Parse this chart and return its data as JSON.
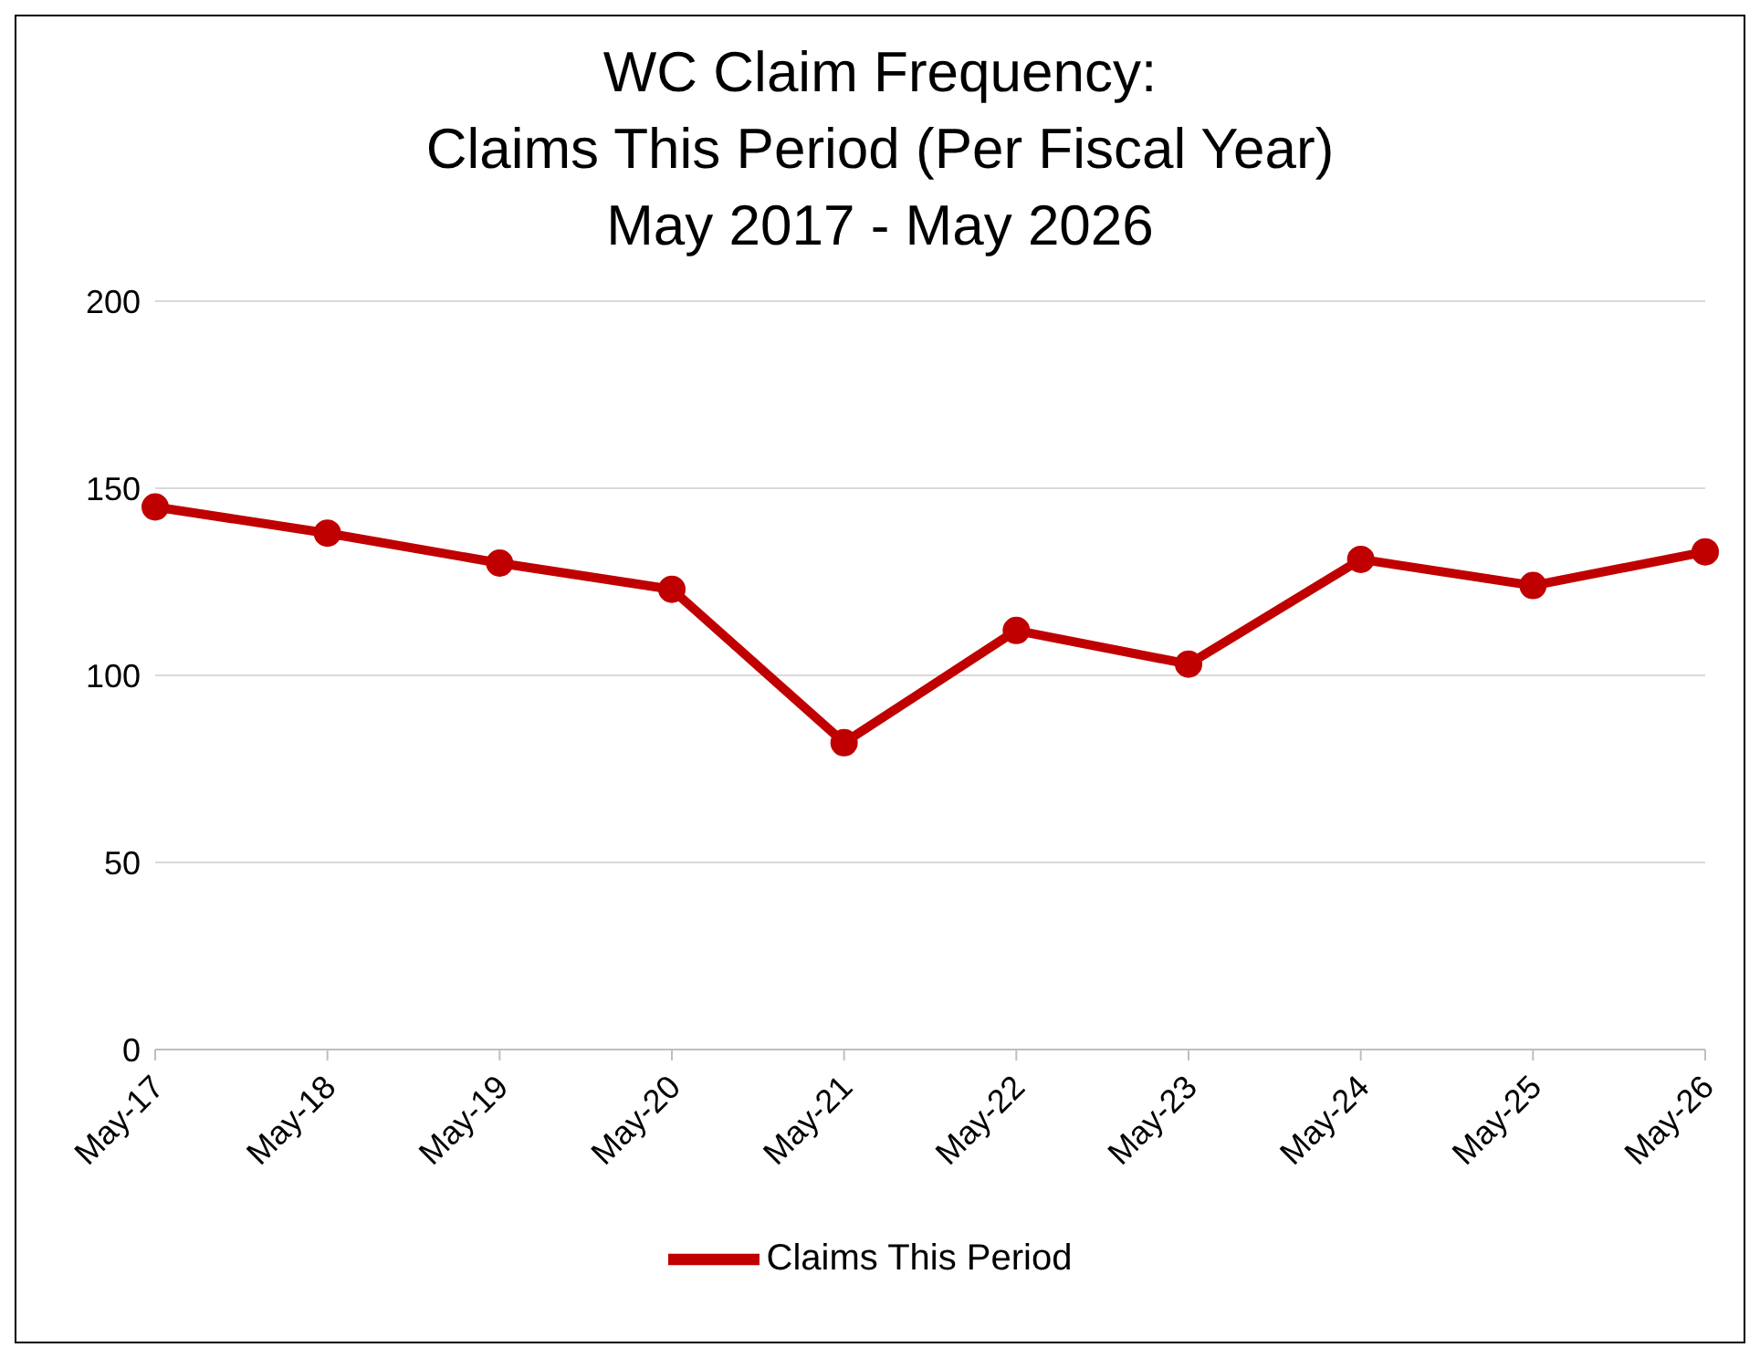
{
  "chart_data": {
    "type": "line",
    "title": "WC Claim Frequency:\nClaims This Period (Per Fiscal Year)\nMay 2017 - May 2026",
    "categories": [
      "May-17",
      "May-18",
      "May-19",
      "May-20",
      "May-21",
      "May-22",
      "May-23",
      "May-24",
      "May-25",
      "May-26"
    ],
    "series": [
      {
        "name": "Claims This Period",
        "color": "#c00000",
        "values": [
          145,
          138,
          130,
          123,
          82,
          112,
          103,
          131,
          124,
          133
        ]
      }
    ],
    "ylim": [
      0,
      200
    ],
    "yticks": [
      0,
      50,
      100,
      150,
      200
    ],
    "grid": "y",
    "legend": "bottom",
    "marker": "circle",
    "line_style": "solid"
  }
}
